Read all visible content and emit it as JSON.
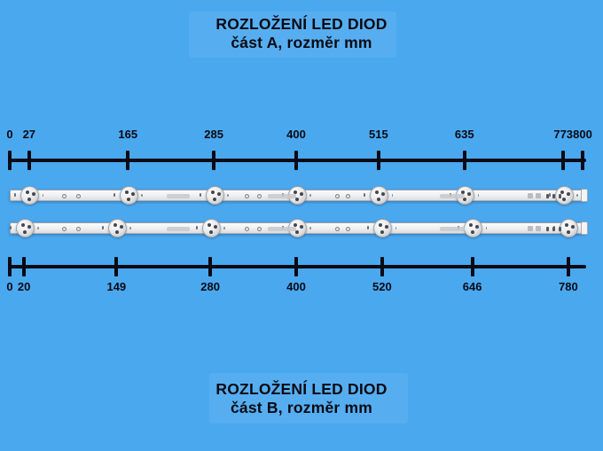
{
  "colors": {
    "background": "#4aa8ef",
    "ink": "#0a0a14",
    "strip_base": "#ececee",
    "lens_dot": "#45464e"
  },
  "titles": {
    "a": {
      "line1": "ROZLOŽENÍ LED DIOD",
      "line2": "část A, rozměr mm"
    },
    "b": {
      "line1": "ROZLOŽENÍ LED DIOD",
      "line2": "část B, rozměr mm"
    }
  },
  "rulers": {
    "a": {
      "unit": "mm",
      "range": [
        0,
        800
      ],
      "ticks": [
        {
          "label": "0",
          "mm": 0
        },
        {
          "label": "27",
          "mm": 27
        },
        {
          "label": "165",
          "mm": 165
        },
        {
          "label": "285",
          "mm": 285
        },
        {
          "label": "400",
          "mm": 400
        },
        {
          "label": "515",
          "mm": 515
        },
        {
          "label": "635",
          "mm": 635
        },
        {
          "label": "773",
          "mm": 773
        },
        {
          "label": "800",
          "mm": 800
        }
      ]
    },
    "b": {
      "unit": "mm",
      "range": [
        0,
        800
      ],
      "ticks": [
        {
          "label": "0",
          "mm": 0
        },
        {
          "label": "20",
          "mm": 20
        },
        {
          "label": "149",
          "mm": 149
        },
        {
          "label": "280",
          "mm": 280
        },
        {
          "label": "400",
          "mm": 400
        },
        {
          "label": "520",
          "mm": 520
        },
        {
          "label": "646",
          "mm": 646
        },
        {
          "label": "780",
          "mm": 780
        }
      ]
    }
  },
  "strips": {
    "a": {
      "led_count": 7,
      "led_positions_mm": [
        27,
        165,
        285,
        400,
        515,
        635,
        773
      ],
      "length_mm": 800
    },
    "b": {
      "led_count": 7,
      "led_positions_mm": [
        20,
        149,
        280,
        400,
        520,
        646,
        780
      ],
      "length_mm": 800
    }
  }
}
